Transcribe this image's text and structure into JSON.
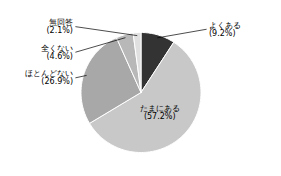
{
  "chart_data": {
    "type": "pie",
    "categories": [
      "よくある",
      "たまにある",
      "ほとんどない",
      "全くない",
      "無回答"
    ],
    "values": [
      9.2,
      57.2,
      26.9,
      4.6,
      2.1
    ],
    "value_labels": [
      "(9.2%)",
      "(57.2%)",
      "(26.9%)",
      "(4.6%)",
      "(2.1%)"
    ],
    "colors": [
      "#333333",
      "#c8c8c8",
      "#a8a8a8",
      "#b8b8b8",
      "#e0e0e0"
    ],
    "data_labels": true
  }
}
